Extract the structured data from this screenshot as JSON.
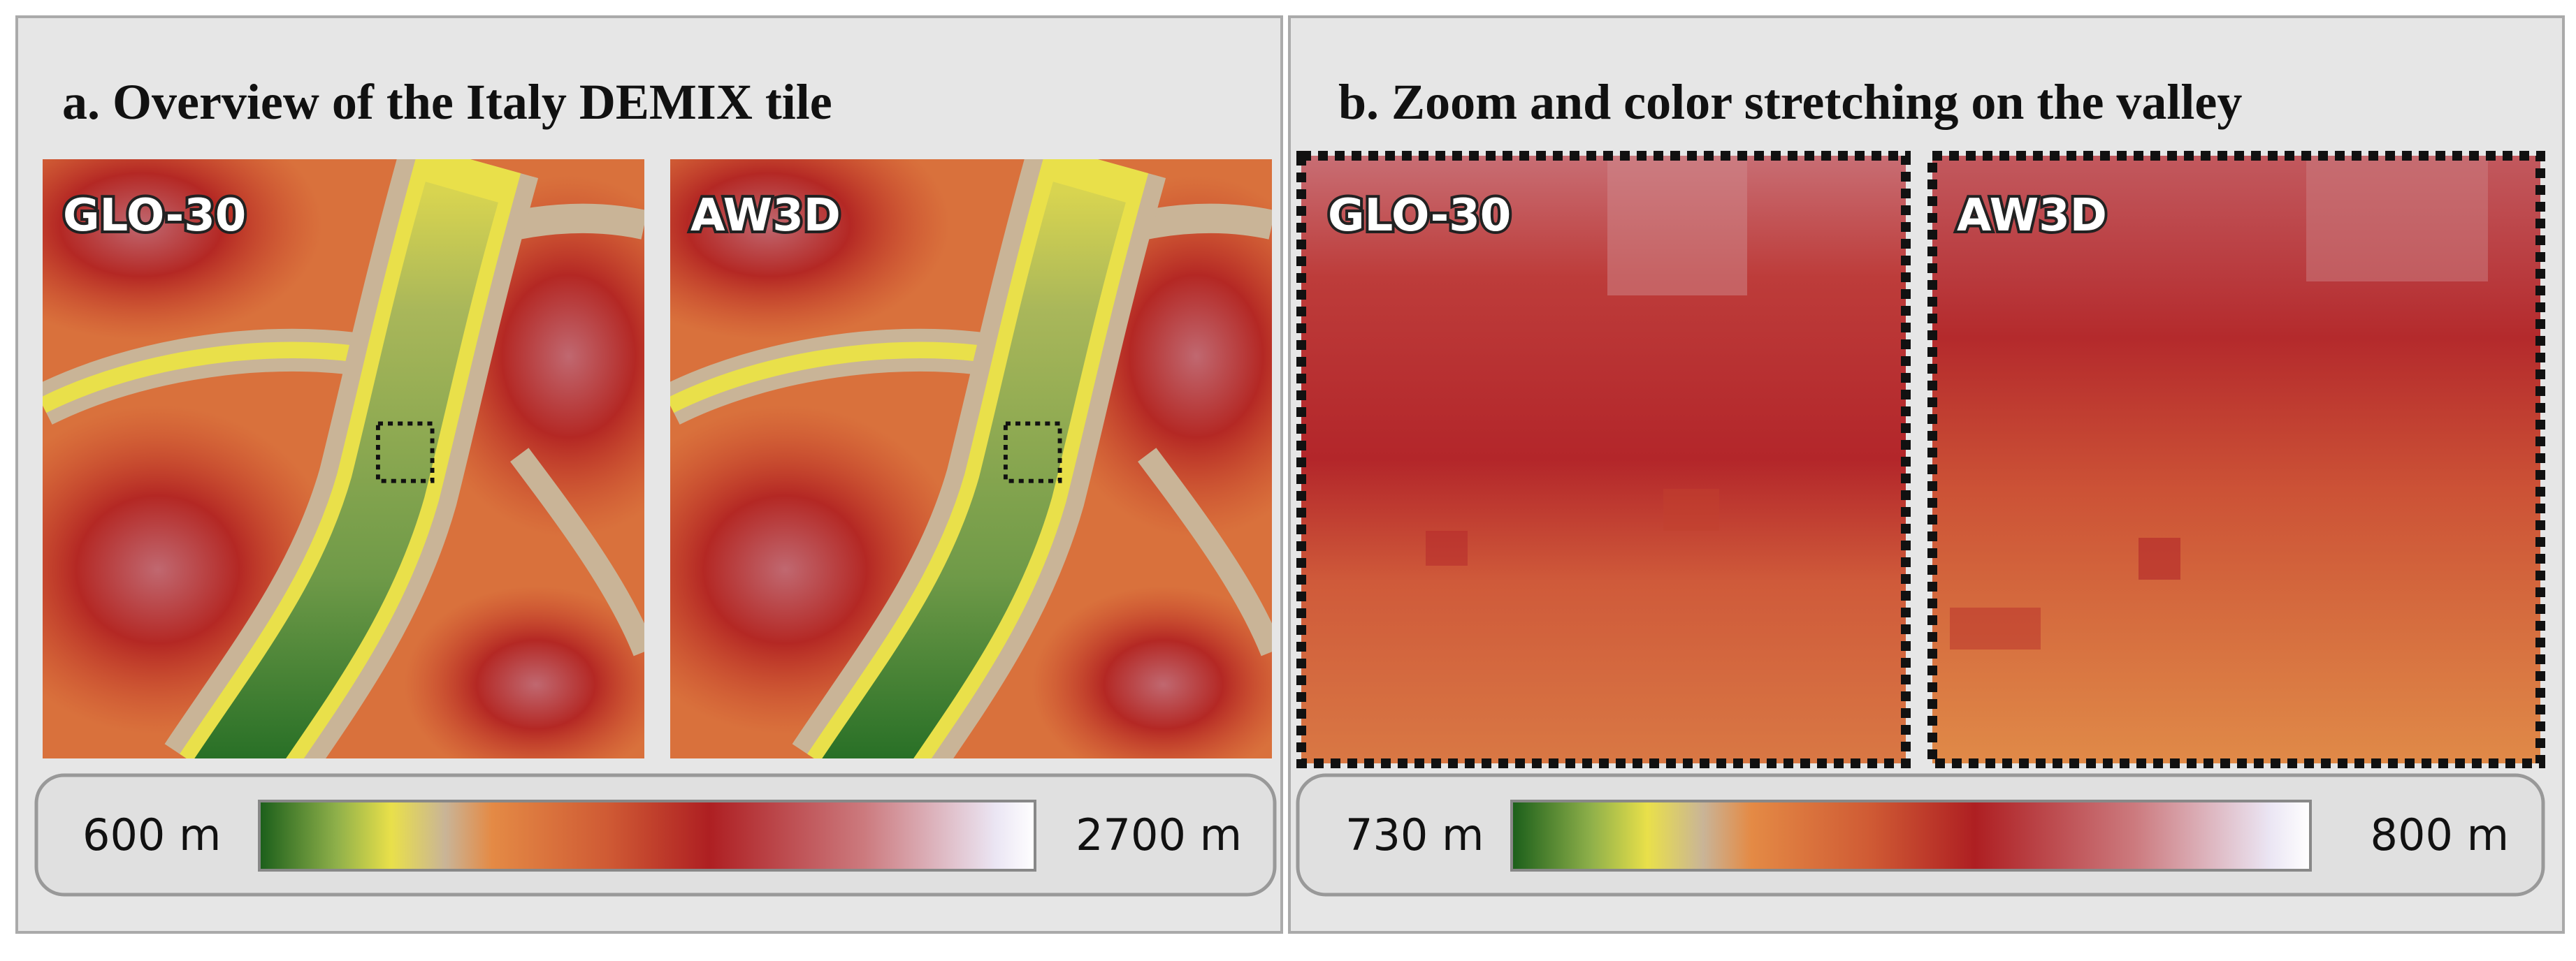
{
  "panels": [
    {
      "title": "a. Overview of the Italy DEMIX tile",
      "images": [
        {
          "label": "GLO-30"
        },
        {
          "label": "AW3D"
        }
      ],
      "colorbar": {
        "min_label": "600 m",
        "max_label": "2700 m"
      }
    },
    {
      "title": "b. Zoom and color stretching on the valley",
      "images": [
        {
          "label": "GLO-30"
        },
        {
          "label": "AW3D"
        }
      ],
      "colorbar": {
        "min_label": "730 m",
        "max_label": "800 m"
      }
    }
  ]
}
